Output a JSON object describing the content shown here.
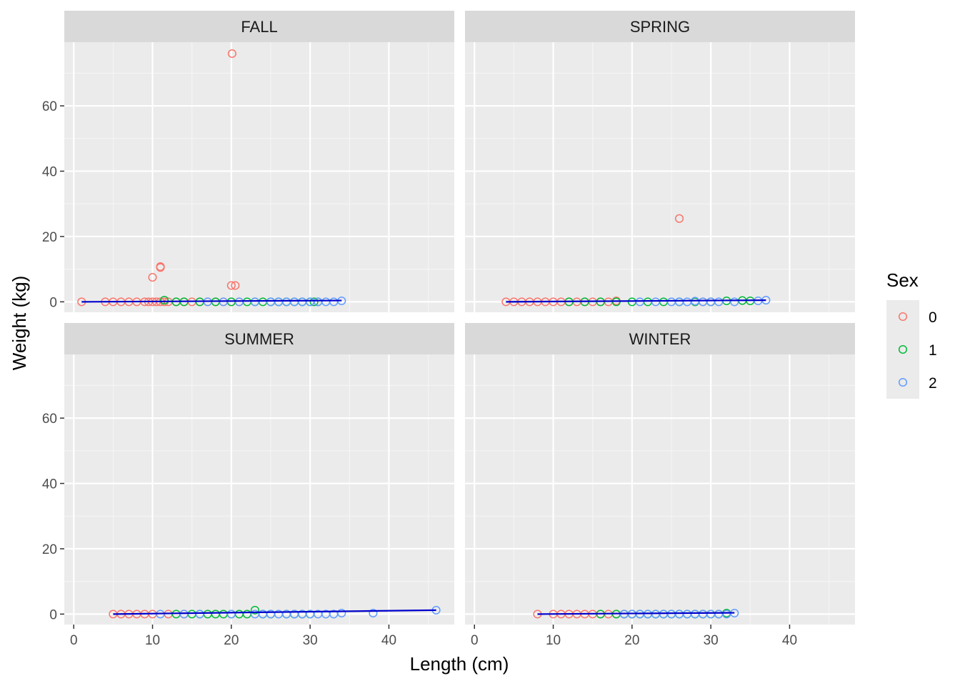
{
  "chart_data": {
    "type": "scatter",
    "facet_by": "Season",
    "xlabel": "Length (cm)",
    "ylabel": "Weight (kg)",
    "xlim": [
      -1.2,
      48.3
    ],
    "ylim": [
      -3.2,
      79.5
    ],
    "x_ticks": [
      0,
      10,
      20,
      30,
      40
    ],
    "y_ticks": [
      0,
      20,
      40,
      60
    ],
    "grid": true,
    "legend": {
      "title": "Sex",
      "position": "right",
      "entries": [
        "0",
        "1",
        "2"
      ]
    },
    "colors": {
      "0": "#F8766D",
      "1": "#00BA38",
      "2": "#619CFF",
      "fit_line": "#0000CC"
    },
    "facets": [
      {
        "name": "FALL",
        "fit_line": [
          [
            1,
            0.0
          ],
          [
            34,
            0.4
          ]
        ],
        "series": [
          {
            "name": "0",
            "points": [
              [
                1,
                0
              ],
              [
                4,
                0
              ],
              [
                5,
                0
              ],
              [
                6,
                0
              ],
              [
                7,
                0
              ],
              [
                8,
                0
              ],
              [
                9,
                0
              ],
              [
                9.5,
                0
              ],
              [
                10,
                0
              ],
              [
                10.5,
                0
              ],
              [
                11,
                0
              ],
              [
                11.5,
                0
              ],
              [
                12,
                0
              ],
              [
                13,
                0
              ],
              [
                14,
                0
              ],
              [
                15,
                0
              ],
              [
                16,
                0
              ],
              [
                17,
                0
              ],
              [
                18,
                0
              ],
              [
                19,
                0
              ],
              [
                20,
                0
              ],
              [
                21,
                0
              ],
              [
                10,
                7.5
              ],
              [
                11,
                10.8
              ],
              [
                11,
                10.5
              ],
              [
                20,
                5
              ],
              [
                20.5,
                5
              ],
              [
                20.1,
                76
              ]
            ]
          },
          {
            "name": "1",
            "points": [
              [
                11.5,
                0.5
              ],
              [
                13,
                0
              ],
              [
                14,
                0
              ],
              [
                16,
                0
              ],
              [
                18,
                0
              ],
              [
                20,
                0
              ],
              [
                22,
                0
              ],
              [
                23,
                0
              ],
              [
                24,
                0
              ],
              [
                25,
                0
              ],
              [
                26,
                0
              ],
              [
                27,
                0
              ],
              [
                28,
                0
              ],
              [
                29,
                0
              ],
              [
                30,
                0
              ],
              [
                30.5,
                0
              ],
              [
                31,
                0
              ]
            ]
          },
          {
            "name": "2",
            "points": [
              [
                17,
                0
              ],
              [
                19,
                0
              ],
              [
                21,
                0
              ],
              [
                23,
                0
              ],
              [
                25,
                0
              ],
              [
                26,
                0
              ],
              [
                27,
                0
              ],
              [
                28,
                0
              ],
              [
                29,
                0
              ],
              [
                30,
                0
              ],
              [
                31,
                0
              ],
              [
                32,
                0
              ],
              [
                33,
                0
              ],
              [
                34,
                0.3
              ]
            ]
          }
        ]
      },
      {
        "name": "SPRING",
        "fit_line": [
          [
            4,
            0.0
          ],
          [
            37,
            0.5
          ]
        ],
        "series": [
          {
            "name": "0",
            "points": [
              [
                4,
                0
              ],
              [
                5,
                0
              ],
              [
                6,
                0
              ],
              [
                7,
                0
              ],
              [
                8,
                0
              ],
              [
                9,
                0
              ],
              [
                10,
                0
              ],
              [
                11,
                0
              ],
              [
                12,
                0
              ],
              [
                13,
                0
              ],
              [
                14,
                0
              ],
              [
                15,
                0
              ],
              [
                16,
                0
              ],
              [
                17,
                0
              ],
              [
                18,
                0.3
              ],
              [
                26,
                25.5
              ],
              [
                28,
                0
              ],
              [
                29,
                0
              ],
              [
                30,
                0
              ]
            ]
          },
          {
            "name": "1",
            "points": [
              [
                12,
                0
              ],
              [
                14,
                0
              ],
              [
                16,
                0
              ],
              [
                18,
                0
              ],
              [
                20,
                0
              ],
              [
                22,
                0
              ],
              [
                24,
                0
              ],
              [
                26,
                0
              ],
              [
                28,
                0
              ],
              [
                30,
                0
              ],
              [
                32,
                0.3
              ],
              [
                34,
                0.4
              ],
              [
                35,
                0.3
              ]
            ]
          },
          {
            "name": "2",
            "points": [
              [
                21,
                0
              ],
              [
                23,
                0
              ],
              [
                25,
                0
              ],
              [
                26,
                0
              ],
              [
                27,
                0
              ],
              [
                28,
                0.2
              ],
              [
                29,
                0
              ],
              [
                30,
                0
              ],
              [
                31,
                0
              ],
              [
                33,
                0
              ],
              [
                36,
                0.3
              ],
              [
                37,
                0.5
              ]
            ]
          }
        ]
      },
      {
        "name": "SUMMER",
        "fit_line": [
          [
            5,
            0.0
          ],
          [
            46,
            1.2
          ]
        ],
        "series": [
          {
            "name": "0",
            "points": [
              [
                5,
                0
              ],
              [
                6,
                0
              ],
              [
                7,
                0
              ],
              [
                8,
                0
              ],
              [
                9,
                0
              ],
              [
                10,
                0
              ],
              [
                12,
                0
              ],
              [
                14,
                0
              ]
            ]
          },
          {
            "name": "1",
            "points": [
              [
                13,
                0
              ],
              [
                15,
                0
              ],
              [
                16,
                0
              ],
              [
                17,
                0
              ],
              [
                18,
                0
              ],
              [
                19,
                0
              ],
              [
                20,
                0
              ],
              [
                21,
                0
              ],
              [
                22,
                0
              ],
              [
                23,
                1.2
              ],
              [
                24,
                0
              ],
              [
                25,
                0
              ],
              [
                27,
                0
              ],
              [
                28,
                0
              ],
              [
                29,
                0
              ],
              [
                30,
                0
              ]
            ]
          },
          {
            "name": "2",
            "points": [
              [
                11,
                0
              ],
              [
                14,
                0
              ],
              [
                16,
                0
              ],
              [
                20,
                0
              ],
              [
                23,
                0
              ],
              [
                24,
                0
              ],
              [
                25,
                0
              ],
              [
                26,
                0
              ],
              [
                27,
                0
              ],
              [
                28,
                0
              ],
              [
                29,
                0
              ],
              [
                30,
                0
              ],
              [
                31,
                0
              ],
              [
                32,
                0
              ],
              [
                33,
                0
              ],
              [
                34,
                0.3
              ],
              [
                38,
                0.3
              ],
              [
                46,
                1.2
              ]
            ]
          }
        ]
      },
      {
        "name": "WINTER",
        "fit_line": [
          [
            8,
            0.0
          ],
          [
            33,
            0.4
          ]
        ],
        "series": [
          {
            "name": "0",
            "points": [
              [
                8,
                0
              ],
              [
                10,
                0
              ],
              [
                11,
                0
              ],
              [
                12,
                0
              ],
              [
                13,
                0
              ],
              [
                14,
                0
              ],
              [
                15,
                0
              ],
              [
                16,
                0
              ],
              [
                17,
                0
              ],
              [
                18,
                0
              ],
              [
                19,
                0
              ],
              [
                20,
                0
              ]
            ]
          },
          {
            "name": "1",
            "points": [
              [
                16,
                0
              ],
              [
                18,
                0
              ],
              [
                19,
                0
              ],
              [
                20,
                0
              ],
              [
                21,
                0
              ],
              [
                22,
                0
              ],
              [
                23,
                0
              ],
              [
                24,
                0
              ],
              [
                25,
                0
              ],
              [
                26,
                0
              ],
              [
                27,
                0
              ],
              [
                28,
                0
              ],
              [
                29,
                0
              ],
              [
                30,
                0
              ],
              [
                31,
                0
              ],
              [
                32,
                0.3
              ]
            ]
          },
          {
            "name": "2",
            "points": [
              [
                19,
                0
              ],
              [
                20,
                0
              ],
              [
                21,
                0
              ],
              [
                22,
                0
              ],
              [
                23,
                0
              ],
              [
                24,
                0
              ],
              [
                25,
                0
              ],
              [
                26,
                0
              ],
              [
                27,
                0
              ],
              [
                28,
                0
              ],
              [
                29,
                0
              ],
              [
                30,
                0
              ],
              [
                31,
                0
              ],
              [
                32,
                0
              ],
              [
                33,
                0.3
              ]
            ]
          }
        ]
      }
    ]
  }
}
